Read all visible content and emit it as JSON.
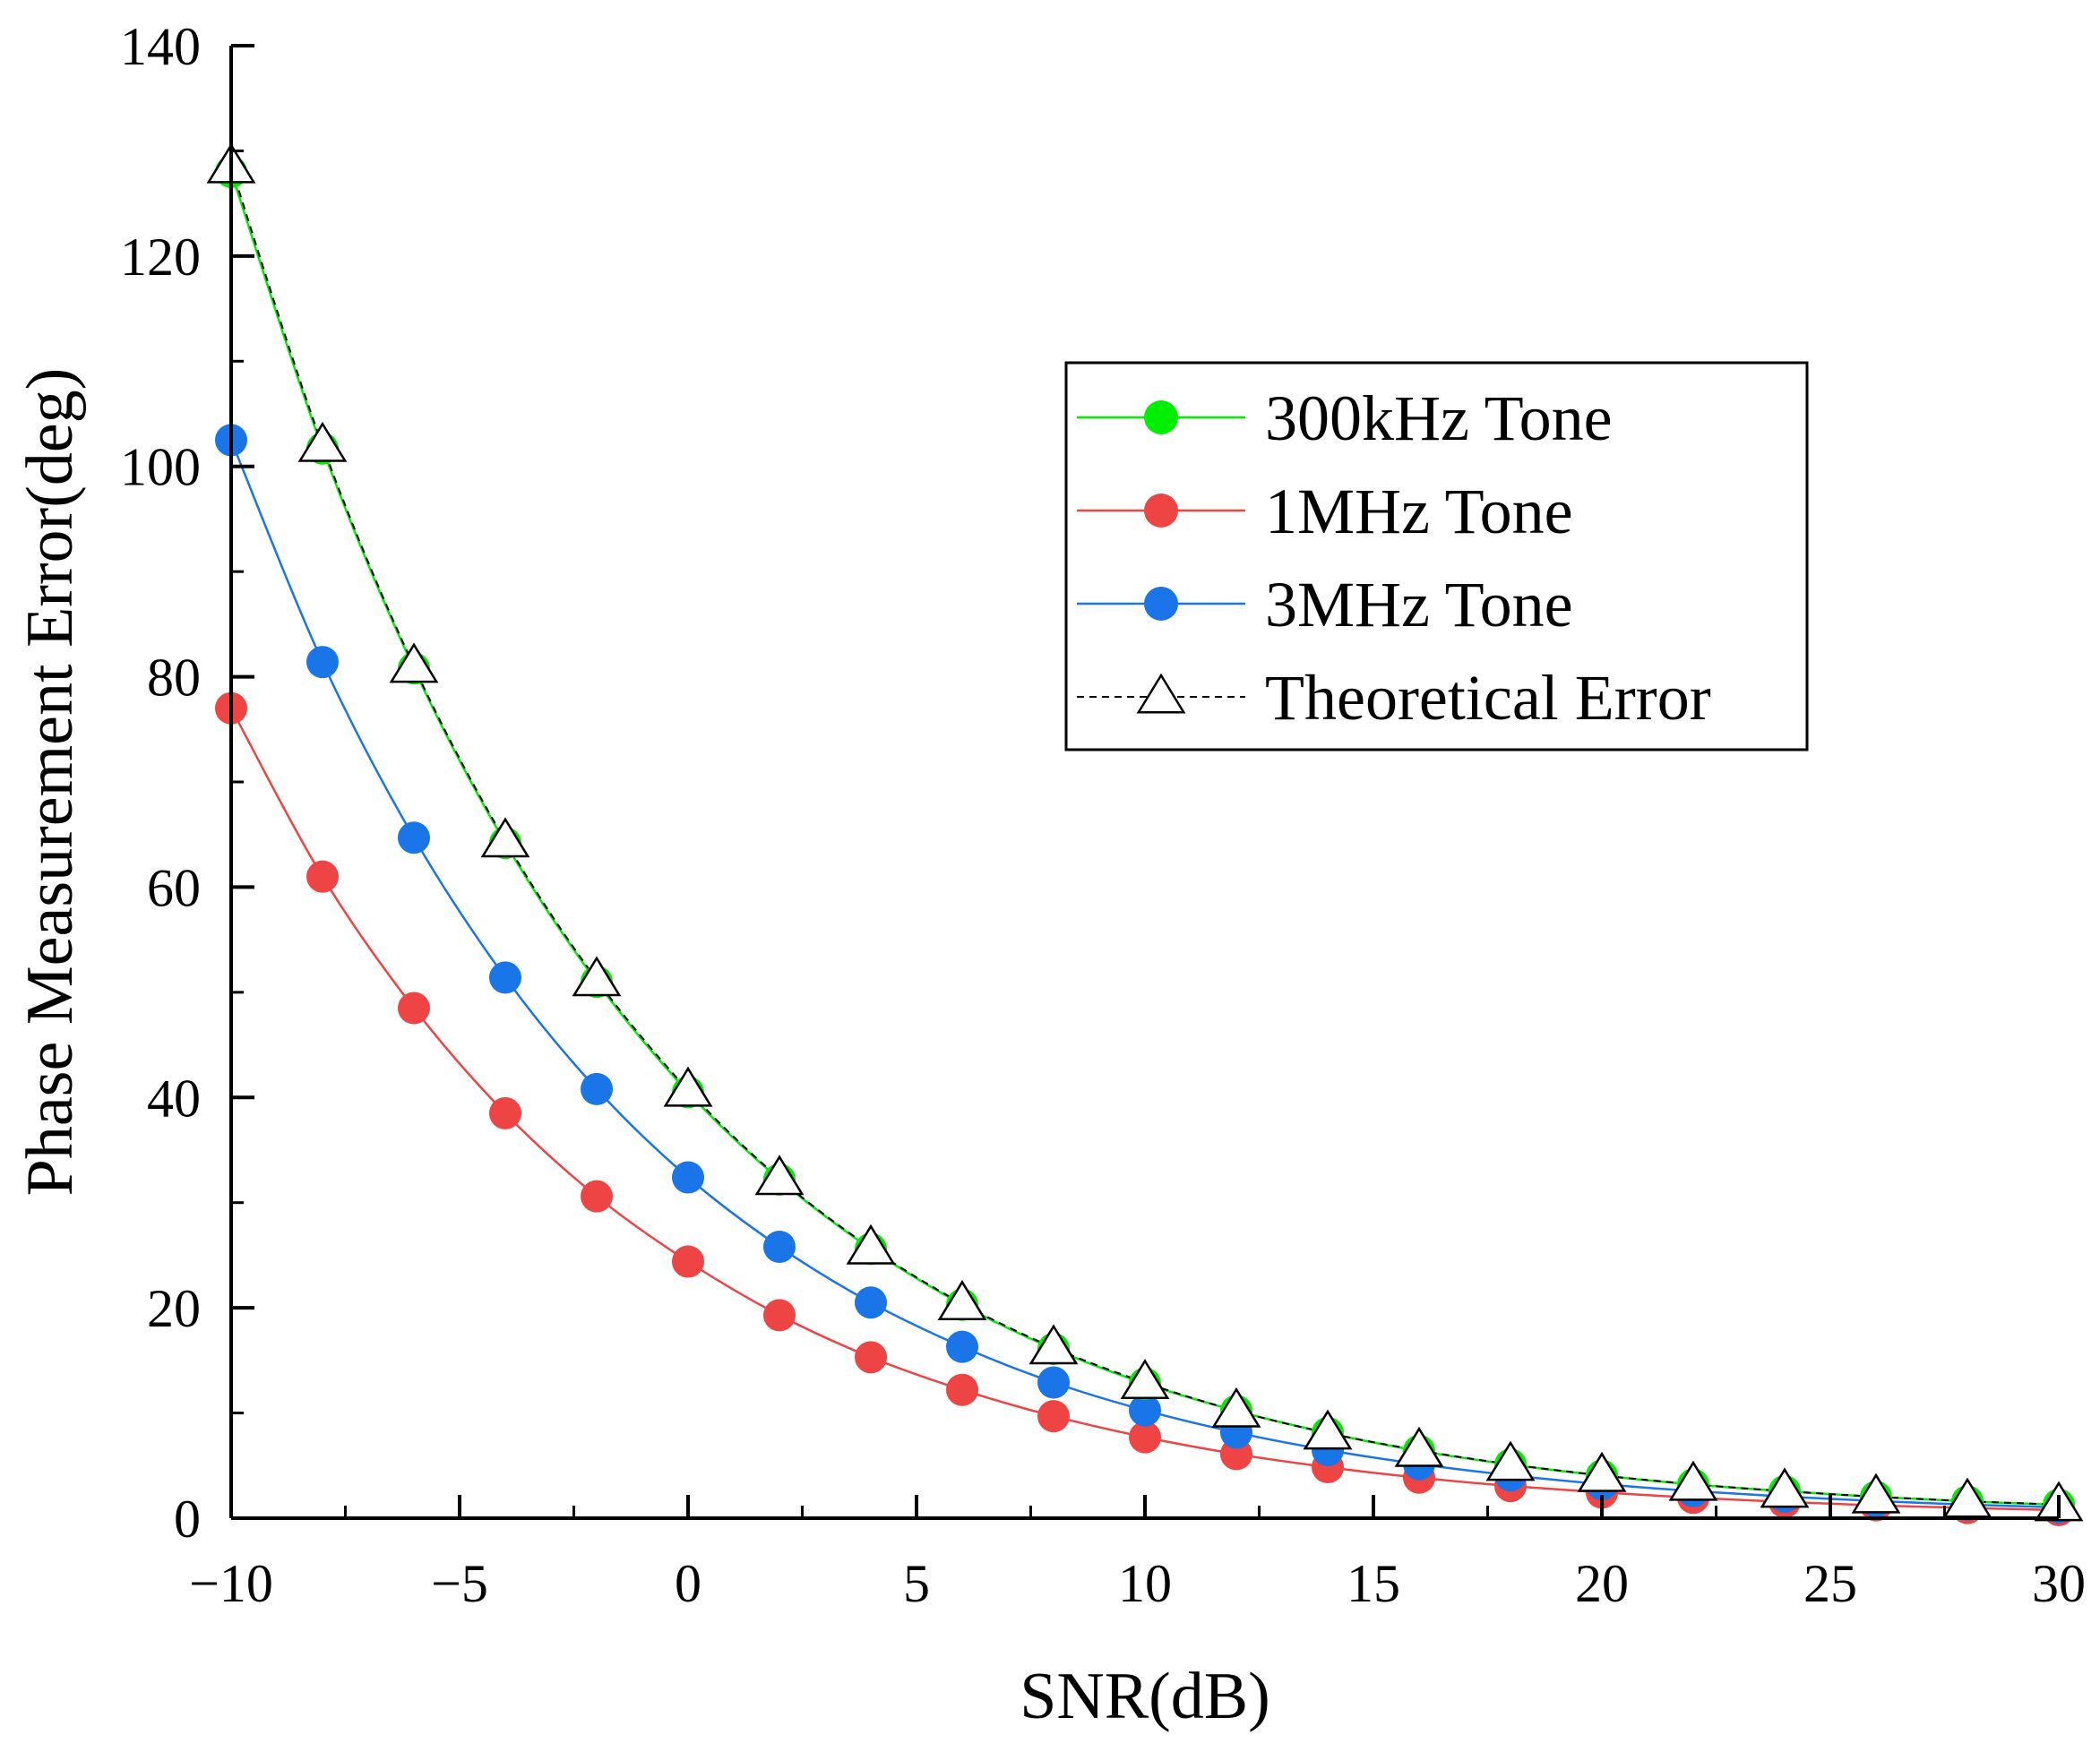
{
  "chart_data": {
    "type": "line",
    "title": "",
    "xlabel": "SNR(dB)",
    "ylabel": "Phase Measurement Error(deg)",
    "xlim": [
      -10,
      30
    ],
    "ylim": [
      0,
      140
    ],
    "xticks": [
      -10,
      -5,
      0,
      5,
      10,
      15,
      20,
      25,
      30
    ],
    "yticks": [
      0,
      20,
      40,
      60,
      80,
      100,
      120,
      140
    ],
    "xtick_labels": [
      "−10",
      "−5",
      "0",
      "5",
      "10",
      "15",
      "20",
      "25",
      "30"
    ],
    "ytick_labels": [
      "0",
      "20",
      "40",
      "60",
      "80",
      "100",
      "120",
      "140"
    ],
    "grid": false,
    "legend_position": "top-right",
    "x": [
      -10,
      -8,
      -6,
      -4,
      -2,
      0,
      2,
      4,
      6,
      8,
      10,
      12,
      14,
      16,
      18,
      20,
      22,
      24,
      26,
      28,
      30
    ],
    "series": [
      {
        "name": "300kHz Tone",
        "color": "#00ee00",
        "marker": "circle",
        "line": "solid",
        "values": [
          128,
          101.7,
          80.8,
          64.2,
          51.0,
          40.5,
          32.2,
          25.6,
          20.3,
          16.1,
          12.8,
          10.2,
          8.1,
          6.4,
          5.1,
          4.05,
          3.2,
          2.56,
          2.03,
          1.6,
          1.28
        ]
      },
      {
        "name": "1MHz Tone",
        "color": "#ee4444",
        "marker": "circle",
        "line": "solid",
        "values": [
          77,
          61,
          48.5,
          38.5,
          30.6,
          24.4,
          19.3,
          15.3,
          12.2,
          9.7,
          7.7,
          6.1,
          4.85,
          3.85,
          3.06,
          2.44,
          1.94,
          1.54,
          1.22,
          0.97,
          0.77
        ]
      },
      {
        "name": "3MHz Tone",
        "color": "#1a75e8",
        "marker": "circle",
        "line": "solid",
        "values": [
          102.5,
          81.4,
          64.7,
          51.4,
          40.8,
          32.4,
          25.8,
          20.5,
          16.3,
          12.9,
          10.25,
          8.14,
          6.47,
          5.14,
          4.08,
          3.24,
          2.58,
          2.05,
          1.63,
          1.29,
          1.03
        ]
      },
      {
        "name": "Theoretical Error",
        "color": "#000000",
        "marker": "triangle",
        "line": "dashed",
        "values": [
          128.5,
          102,
          81,
          64.4,
          51.2,
          40.7,
          32.3,
          25.7,
          20.4,
          16.2,
          12.9,
          10.2,
          8.1,
          6.45,
          5.12,
          4.07,
          3.23,
          2.57,
          2.04,
          1.62,
          1.29
        ]
      }
    ]
  }
}
